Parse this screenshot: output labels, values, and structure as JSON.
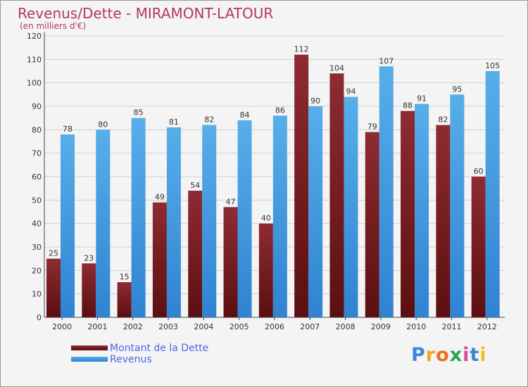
{
  "header": {
    "title": "Revenus/Dette - MIRAMONT-LATOUR",
    "subtitle": "(en milliers d'€)"
  },
  "legend": {
    "debt_label": "Montant de la Dette",
    "revenue_label": "Revenus"
  },
  "logo": {
    "text": "Proxiti"
  },
  "colors": {
    "title": "#b4385a",
    "legend_text": "#4c68e6",
    "debt": "#731e22",
    "revenue": "#3c97e5",
    "background": "#f4f4f4",
    "grid": "#cfcfcf"
  },
  "chart_data": {
    "type": "bar",
    "title": "Revenus/Dette - MIRAMONT-LATOUR",
    "subtitle": "(en milliers d'€)",
    "categories": [
      "2000",
      "2001",
      "2002",
      "2003",
      "2004",
      "2005",
      "2006",
      "2007",
      "2008",
      "2009",
      "2010",
      "2011",
      "2012"
    ],
    "series": [
      {
        "name": "Montant de la Dette",
        "color": "#731e22",
        "values": [
          25,
          23,
          15,
          49,
          54,
          47,
          40,
          112,
          104,
          79,
          88,
          82,
          60
        ]
      },
      {
        "name": "Revenus",
        "color": "#3c97e5",
        "values": [
          78,
          80,
          85,
          81,
          82,
          84,
          86,
          90,
          94,
          107,
          91,
          95,
          105
        ]
      }
    ],
    "ylim": [
      0,
      120
    ],
    "ytick_step": 10,
    "grid": true,
    "legend_position": "bottom-left"
  }
}
